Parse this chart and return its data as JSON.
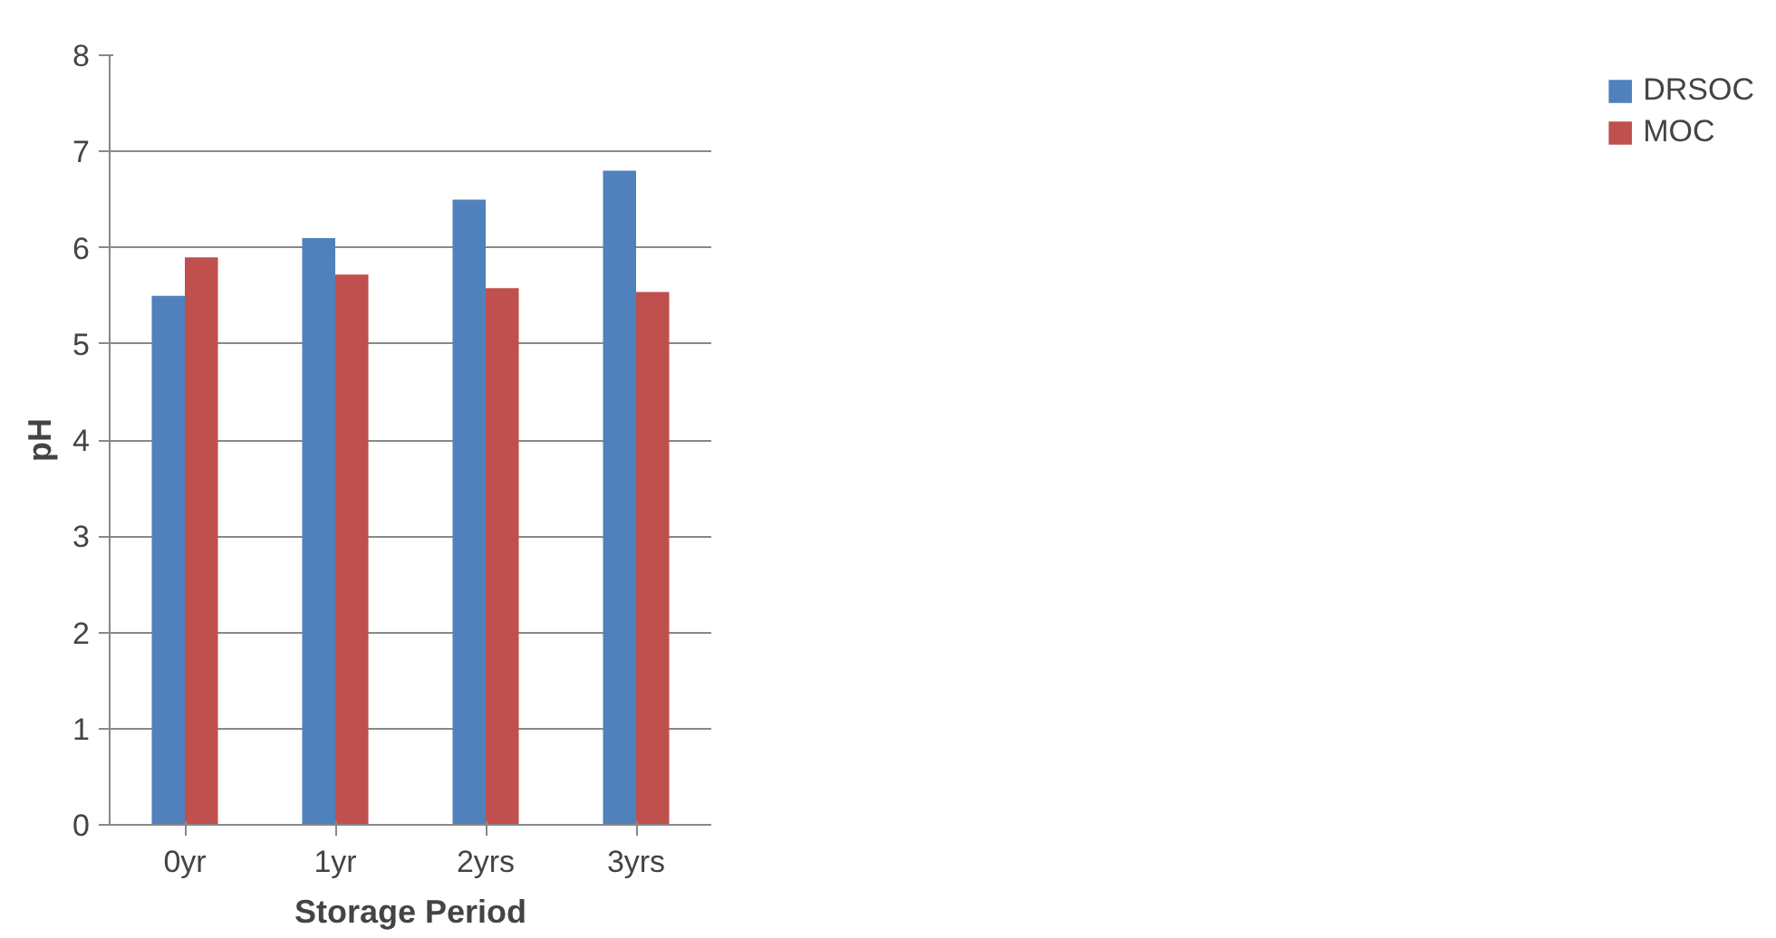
{
  "chart_data": {
    "type": "bar",
    "xlabel": "Storage Period",
    "ylabel": "pH",
    "categories": [
      "0yr",
      "1yr",
      "2yrs",
      "3yrs"
    ],
    "series": [
      {
        "name": "DRSOC",
        "color": "#4f81bd",
        "values": [
          5.5,
          6.1,
          6.5,
          6.8
        ]
      },
      {
        "name": "MOC",
        "color": "#c0504d",
        "values": [
          5.9,
          5.72,
          5.58,
          5.54
        ]
      }
    ],
    "ylim": [
      0,
      8
    ],
    "yticks": [
      0,
      1,
      2,
      3,
      4,
      5,
      6,
      7,
      8
    ],
    "grid": "y",
    "legend": "right"
  }
}
